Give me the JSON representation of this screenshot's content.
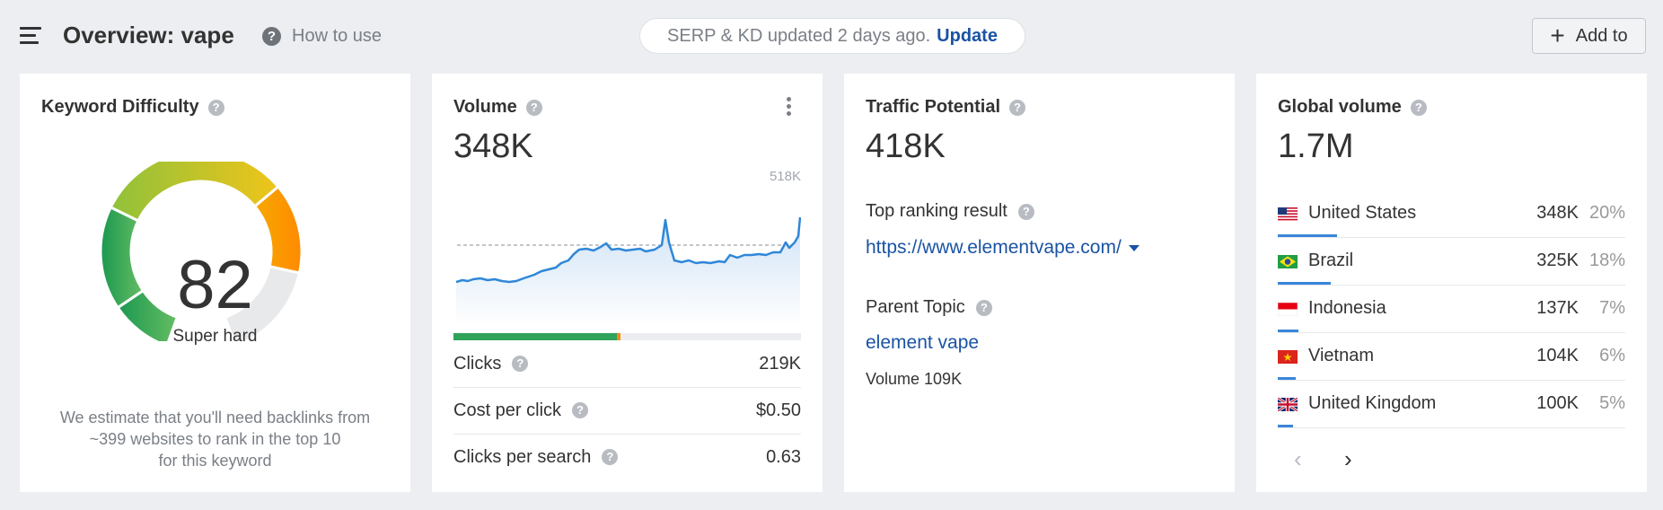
{
  "header": {
    "title": "Overview: vape",
    "how_to_use": "How to use",
    "help_glyph": "?",
    "serp_status": "SERP & KD updated 2 days ago.",
    "update_link": "Update",
    "add_to": "Add to",
    "add_icon": "+"
  },
  "keyword_difficulty": {
    "title": "Keyword Difficulty",
    "value": "82",
    "score": 82,
    "label": "Super hard",
    "note_line1": "We estimate that you'll need backlinks from",
    "note_line2": "~399 websites to rank in the top 10",
    "note_line3": "for this keyword",
    "colors": {
      "red": "#d9534f",
      "green": "#2fa35a",
      "yellow": "#d9c21d",
      "orange": "#ff8c00",
      "track": "#e8e9eb"
    }
  },
  "volume": {
    "title": "Volume",
    "value": "348K",
    "chart_max_label": "518K",
    "clicks_share": 0.47,
    "paid_share": 0.01,
    "colors": {
      "line": "#2f87d8",
      "organic": "#2fa35a",
      "paid": "#f58a1c"
    },
    "metrics": [
      {
        "label": "Clicks",
        "value": "219K"
      },
      {
        "label": "Cost per click",
        "value": "$0.50"
      },
      {
        "label": "Clicks per search",
        "value": "0.63"
      }
    ]
  },
  "traffic_potential": {
    "title": "Traffic Potential",
    "value": "418K",
    "top_ranking_label": "Top ranking result",
    "top_ranking_url": "https://www.elementvape.com/",
    "parent_topic_label": "Parent Topic",
    "parent_topic": "element vape",
    "parent_volume": "Volume 109K"
  },
  "global_volume": {
    "title": "Global volume",
    "value": "1.7M",
    "countries": [
      {
        "name": "United States",
        "volume": "348K",
        "percent": "20%",
        "share": 0.2,
        "flag": "us-flag-icon"
      },
      {
        "name": "Brazil",
        "volume": "325K",
        "percent": "18%",
        "share": 0.18,
        "flag": "br-flag-icon"
      },
      {
        "name": "Indonesia",
        "volume": "137K",
        "percent": "7%",
        "share": 0.07,
        "flag": "id-flag-icon"
      },
      {
        "name": "Vietnam",
        "volume": "104K",
        "percent": "6%",
        "share": 0.06,
        "flag": "vn-flag-icon"
      },
      {
        "name": "United Kingdom",
        "volume": "100K",
        "percent": "5%",
        "share": 0.05,
        "flag": "gb-flag-icon"
      }
    ],
    "prev_glyph": "‹",
    "next_glyph": "›"
  }
}
